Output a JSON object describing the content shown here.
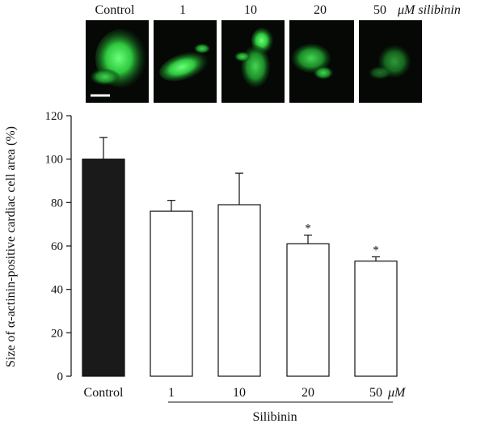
{
  "image_row": {
    "labels": [
      "Control",
      "1",
      "10",
      "20",
      "50"
    ],
    "unit": "μM silibinin"
  },
  "chart_data": {
    "type": "bar",
    "categories": [
      "Control",
      "1",
      "10",
      "20",
      "50"
    ],
    "values": [
      100,
      76,
      79,
      61,
      53
    ],
    "errors": [
      10,
      5,
      14.5,
      4,
      2
    ],
    "significant": [
      false,
      false,
      false,
      true,
      true
    ],
    "significance_marker": "*",
    "bar_colors": [
      "#1a1a1a",
      "#ffffff",
      "#ffffff",
      "#ffffff",
      "#ffffff"
    ],
    "ylabel": "Size of α-actinin-positive cardiac cell area (%)",
    "yticks": [
      0,
      20,
      40,
      60,
      80,
      100,
      120
    ],
    "ylim": [
      0,
      120
    ],
    "x_unit": "μM",
    "group_label": "Silibinin"
  }
}
